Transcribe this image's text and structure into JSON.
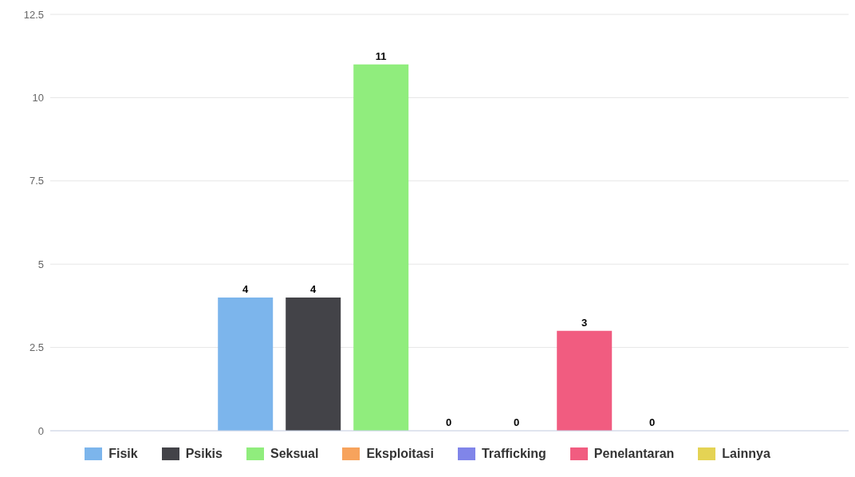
{
  "chart_data": {
    "type": "bar",
    "categories": [
      null
    ],
    "series": [
      {
        "name": "Fisik",
        "color": "#7cb5ec",
        "values": [
          4
        ]
      },
      {
        "name": "Psikis",
        "color": "#434348",
        "values": [
          4
        ]
      },
      {
        "name": "Seksual",
        "color": "#90ed7d",
        "values": [
          11
        ]
      },
      {
        "name": "Eksploitasi",
        "color": "#f7a35c",
        "values": [
          0
        ]
      },
      {
        "name": "Trafficking",
        "color": "#8085e9",
        "values": [
          0
        ]
      },
      {
        "name": "Penelantaran",
        "color": "#f15c80",
        "values": [
          3
        ]
      },
      {
        "name": "Lainnya",
        "color": "#e4d354",
        "values": [
          0
        ]
      }
    ],
    "ylim": [
      0,
      12.5
    ],
    "yticks": [
      0,
      2.5,
      5,
      7.5,
      10,
      12.5
    ],
    "grid": "y",
    "legend": "bottom",
    "data_labels": true
  }
}
